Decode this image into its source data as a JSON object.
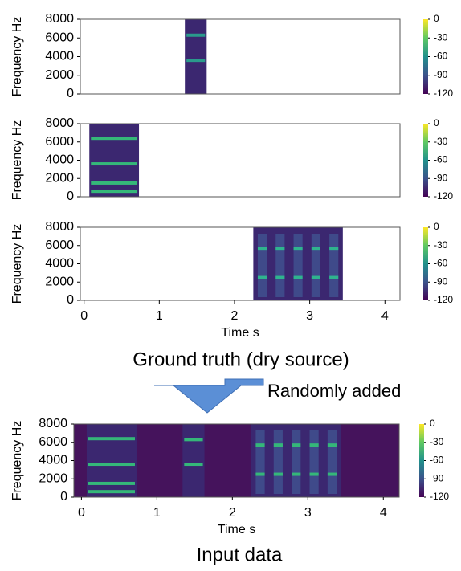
{
  "captions": {
    "ground_truth": "Ground truth (dry source)",
    "arrow": "Randomly added",
    "input": "Input data"
  },
  "chart_data": [
    {
      "type": "spectrogram",
      "ylabel": "Frequency Hz",
      "ylim": [
        0,
        8000
      ],
      "yticks": [
        0,
        2000,
        4000,
        6000,
        8000
      ],
      "xlim": [
        -0.05,
        4.2
      ],
      "clim": [
        -120,
        0
      ],
      "cticks": [
        0,
        -30,
        -60,
        -90,
        -120
      ],
      "background": "#ffffff",
      "segment_color": "#3b2770",
      "band_color": "#2a9a8c",
      "segments": [
        {
          "x": [
            1.34,
            1.63
          ],
          "bands": [
            3600,
            6300
          ]
        }
      ]
    },
    {
      "type": "spectrogram",
      "ylabel": "Frequency Hz",
      "ylim": [
        0,
        8000
      ],
      "yticks": [
        0,
        2000,
        4000,
        6000,
        8000
      ],
      "xlim": [
        -0.05,
        4.2
      ],
      "clim": [
        -120,
        0
      ],
      "cticks": [
        0,
        -30,
        -60,
        -90,
        -120
      ],
      "background": "#ffffff",
      "segment_color": "#3b2770",
      "band_color": "#35b779",
      "segments": [
        {
          "x": [
            0.07,
            0.73
          ],
          "bands": [
            600,
            1500,
            3600,
            6400
          ]
        }
      ]
    },
    {
      "type": "spectrogram",
      "ylabel": "Frequency Hz",
      "ylim": [
        0,
        8000
      ],
      "yticks": [
        0,
        2000,
        4000,
        6000,
        8000
      ],
      "xlim": [
        -0.05,
        4.2
      ],
      "xticks": [
        0,
        1,
        2,
        3,
        4
      ],
      "xlabel": "Time s",
      "clim": [
        -120,
        0
      ],
      "cticks": [
        0,
        -30,
        -60,
        -90,
        -120
      ],
      "background": "#ffffff",
      "segment_color": "#3b2770",
      "band_color": "#2fb48e",
      "segments": [
        {
          "x": [
            2.25,
            3.44
          ],
          "bands": [
            2500,
            5700
          ],
          "pulses": 5
        }
      ]
    },
    {
      "type": "spectrogram",
      "ylabel": "Frequency Hz",
      "ylim": [
        0,
        8000
      ],
      "yticks": [
        0,
        2000,
        4000,
        6000,
        8000
      ],
      "xlim": [
        -0.1,
        4.21
      ],
      "xticks": [
        0,
        1,
        2,
        3,
        4
      ],
      "xlabel": "Time s",
      "clim": [
        -120,
        0
      ],
      "cticks": [
        0,
        -30,
        -60,
        -90,
        -120
      ],
      "background": "#45135c",
      "segment_color": "#3b2770",
      "band_color": "#35b779",
      "segments": [
        {
          "x": [
            0.07,
            0.73
          ],
          "bands": [
            600,
            1500,
            3600,
            6400
          ]
        },
        {
          "x": [
            1.34,
            1.63
          ],
          "bands": [
            3600,
            6300
          ]
        },
        {
          "x": [
            2.25,
            3.44
          ],
          "bands": [
            2500,
            5700
          ],
          "pulses": 5
        }
      ]
    }
  ]
}
